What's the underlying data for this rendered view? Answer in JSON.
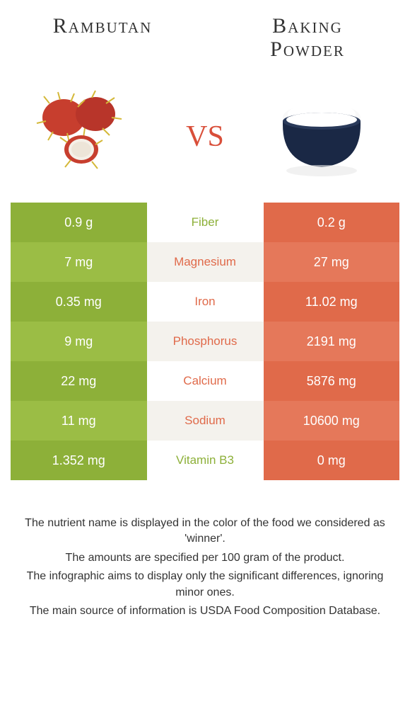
{
  "header": {
    "left_title": "Rambutan",
    "right_title_line1": "Baking",
    "right_title_line2": "Powder",
    "vs": "vs"
  },
  "colors": {
    "green_dark": "#8db039",
    "green_light": "#9bbd45",
    "orange_dark": "#e06a4a",
    "orange_light": "#e5785a",
    "mid_light": "#ffffff",
    "mid_alt": "#f4f2ed",
    "text_white": "#ffffff",
    "winner_green": "#8db039",
    "winner_orange": "#e06a4a"
  },
  "table": {
    "type": "comparison-table",
    "rows": [
      {
        "left": "0.9 g",
        "mid": "Fiber",
        "right": "0.2 g",
        "winner": "left"
      },
      {
        "left": "7 mg",
        "mid": "Magnesium",
        "right": "27 mg",
        "winner": "right"
      },
      {
        "left": "0.35 mg",
        "mid": "Iron",
        "right": "11.02 mg",
        "winner": "right"
      },
      {
        "left": "9 mg",
        "mid": "Phosphorus",
        "right": "2191 mg",
        "winner": "right"
      },
      {
        "left": "22 mg",
        "mid": "Calcium",
        "right": "5876 mg",
        "winner": "right"
      },
      {
        "left": "11 mg",
        "mid": "Sodium",
        "right": "10600 mg",
        "winner": "right"
      },
      {
        "left": "1.352 mg",
        "mid": "Vitamin B3",
        "right": "0 mg",
        "winner": "left"
      }
    ]
  },
  "footnotes": [
    "The nutrient name is displayed in the color of the food we considered as 'winner'.",
    "The amounts are specified per 100 gram of the product.",
    "The infographic aims to display only the significant differences, ignoring minor ones.",
    "The main source of information is USDA Food Composition Database."
  ]
}
